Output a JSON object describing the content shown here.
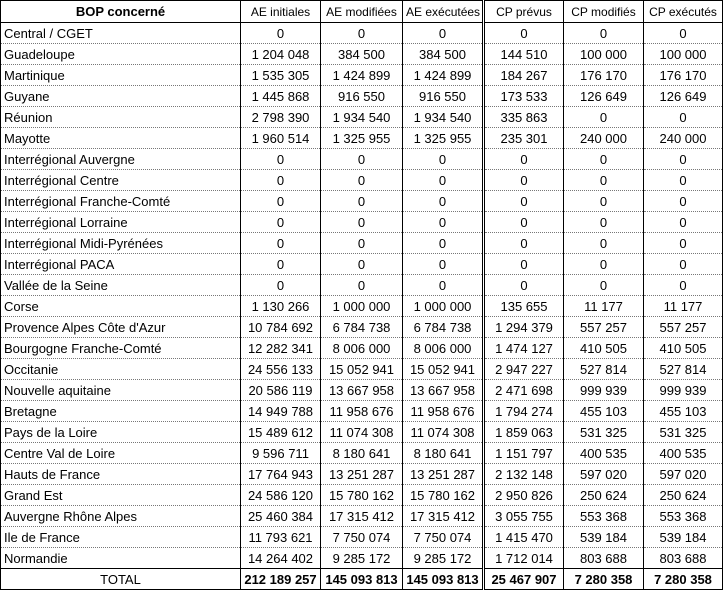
{
  "table": {
    "header": [
      "BOP concerné",
      "AE initiales",
      "AE modifiées",
      "AE exécutées",
      "CP prévus",
      "CP modifiés",
      "CP exécutés"
    ],
    "rows": [
      [
        "Central / CGET",
        "0",
        "0",
        "0",
        "0",
        "0",
        "0"
      ],
      [
        "Guadeloupe",
        "1 204 048",
        "384 500",
        "384 500",
        "144 510",
        "100 000",
        "100 000"
      ],
      [
        "Martinique",
        "1 535 305",
        "1 424 899",
        "1 424 899",
        "184 267",
        "176 170",
        "176 170"
      ],
      [
        "Guyane",
        "1 445 868",
        "916 550",
        "916 550",
        "173 533",
        "126 649",
        "126 649"
      ],
      [
        "Réunion",
        "2 798 390",
        "1 934 540",
        "1 934 540",
        "335 863",
        "0",
        "0"
      ],
      [
        "Mayotte",
        "1 960 514",
        "1 325 955",
        "1 325 955",
        "235 301",
        "240 000",
        "240 000"
      ],
      [
        "Interrégional Auvergne",
        "0",
        "0",
        "0",
        "0",
        "0",
        "0"
      ],
      [
        "Interrégional Centre",
        "0",
        "0",
        "0",
        "0",
        "0",
        "0"
      ],
      [
        "Interrégional Franche-Comté",
        "0",
        "0",
        "0",
        "0",
        "0",
        "0"
      ],
      [
        "Interrégional Lorraine",
        "0",
        "0",
        "0",
        "0",
        "0",
        "0"
      ],
      [
        "Interrégional Midi-Pyrénées",
        "0",
        "0",
        "0",
        "0",
        "0",
        "0"
      ],
      [
        "Interrégional PACA",
        "0",
        "0",
        "0",
        "0",
        "0",
        "0"
      ],
      [
        "Vallée de la Seine",
        "0",
        "0",
        "0",
        "0",
        "0",
        "0"
      ],
      [
        "Corse",
        "1 130 266",
        "1 000 000",
        "1 000 000",
        "135 655",
        "11 177",
        "11 177"
      ],
      [
        "Provence Alpes Côte d'Azur",
        "10 784 692",
        "6 784 738",
        "6 784 738",
        "1 294 379",
        "557 257",
        "557 257"
      ],
      [
        "Bourgogne Franche-Comté",
        "12 282 341",
        "8 006 000",
        "8 006 000",
        "1 474 127",
        "410 505",
        "410 505"
      ],
      [
        "Occitanie",
        "24 556 133",
        "15 052 941",
        "15 052 941",
        "2 947 227",
        "527 814",
        "527 814"
      ],
      [
        "Nouvelle aquitaine",
        "20 586 119",
        "13 667 958",
        "13 667 958",
        "2 471 698",
        "999 939",
        "999 939"
      ],
      [
        "Bretagne",
        "14 949 788",
        "11 958 676",
        "11 958 676",
        "1 794 274",
        "455 103",
        "455 103"
      ],
      [
        "Pays de la Loire",
        "15 489 612",
        "11 074 308",
        "11 074 308",
        "1 859 063",
        "531 325",
        "531 325"
      ],
      [
        "Centre Val de Loire",
        "9 596 711",
        "8 180 641",
        "8 180 641",
        "1 151 797",
        "400 535",
        "400 535"
      ],
      [
        "Hauts de France",
        "17 764 943",
        "13 251 287",
        "13 251 287",
        "2 132 148",
        "597 020",
        "597 020"
      ],
      [
        "Grand Est",
        "24 586 120",
        "15 780 162",
        "15 780 162",
        "2 950 826",
        "250 624",
        "250 624"
      ],
      [
        "Auvergne Rhône Alpes",
        "25 460 384",
        "17 315 412",
        "17 315 412",
        "3 055 755",
        "553 368",
        "553 368"
      ],
      [
        "Ile de France",
        "11 793 621",
        "7 750 074",
        "7 750 074",
        "1 415 470",
        "539 184",
        "539 184"
      ],
      [
        "Normandie",
        "14 264 402",
        "9 285 172",
        "9 285 172",
        "1 712 014",
        "803 688",
        "803 688"
      ]
    ],
    "total": [
      "TOTAL",
      "212 189 257",
      "145 093 813",
      "145 093 813",
      "25 467 907",
      "7 280 358",
      "7 280 358"
    ]
  }
}
